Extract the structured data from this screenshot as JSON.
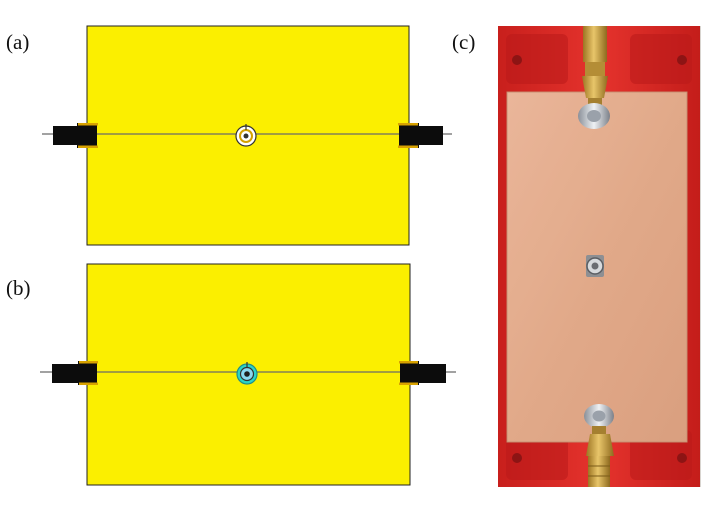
{
  "panels": [
    {
      "label": "(a)",
      "kind": "pcb-model-top"
    },
    {
      "label": "(b)",
      "kind": "pcb-model-bottom"
    },
    {
      "label": "(c)",
      "kind": "fabricated-prototype-photo"
    }
  ],
  "colors": {
    "substrate": "#FBEF00",
    "substrate_border": "#222222",
    "connector": "#0c0c0c",
    "connector_pin": "#d8a200",
    "feed_line": "#6a6a6a",
    "via_ring_a": "#d4a100",
    "via_ring_b": "#2bd3c8",
    "fixture": "#d92a26",
    "copper_board": "#e3a884",
    "sma_gold": "#c9a03c",
    "sma_silver": "#c8ccd2"
  }
}
